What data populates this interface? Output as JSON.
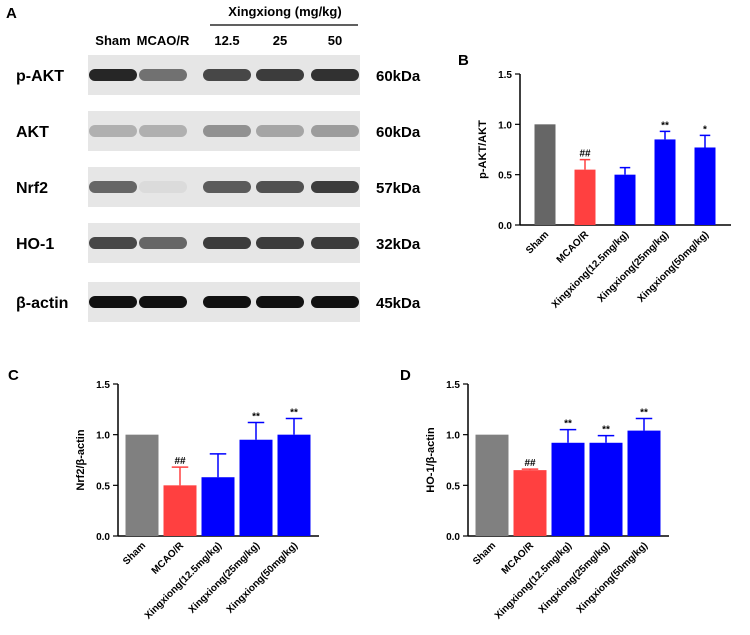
{
  "blot": {
    "panel_label": "A",
    "header": "Xingxiong (mg/kg)",
    "lanes": [
      "Sham",
      "MCAO/R",
      "12.5",
      "25",
      "50"
    ],
    "proteins": [
      "p-AKT",
      "AKT",
      "Nrf2",
      "HO-1",
      "β-actin"
    ],
    "sizes": [
      "60kDa",
      "60kDa",
      "57kDa",
      "32kDa",
      "45kDa"
    ]
  },
  "chart_data": [
    {
      "type": "bar",
      "panel_label": "B",
      "ylabel": "p-AKT/AKT",
      "categories": [
        "Sham",
        "MCAO/R",
        "Xingxiong(12.5mg/kg)",
        "Xingxiong(25mg/kg)",
        "Xingxiong(50mg/kg)"
      ],
      "values": [
        1.0,
        0.55,
        0.5,
        0.85,
        0.77
      ],
      "errors": [
        0,
        0.1,
        0.07,
        0.08,
        0.12
      ],
      "annotations": [
        null,
        "##",
        null,
        "**",
        "*"
      ],
      "colors": [
        "#666666",
        "#ff4040",
        "#0000ff",
        "#0000ff",
        "#0000ff"
      ],
      "ylim": [
        0,
        1.5
      ],
      "yticks": [
        {
          "value": 0,
          "label": "0.0"
        },
        {
          "value": 0.5,
          "label": "0.5"
        },
        {
          "value": 1,
          "label": "1.0"
        },
        {
          "value": 1.5,
          "label": "1.5"
        }
      ]
    },
    {
      "type": "bar",
      "panel_label": "C",
      "ylabel": "Nrf2/β-actin",
      "categories": [
        "Sham",
        "MCAO/R",
        "Xingxiong(12.5mg/kg)",
        "Xingxiong(25mg/kg)",
        "Xingxiong(50mg/kg)"
      ],
      "values": [
        1.0,
        0.5,
        0.58,
        0.95,
        1.0
      ],
      "errors": [
        0,
        0.18,
        0.23,
        0.17,
        0.16
      ],
      "annotations": [
        null,
        "##",
        null,
        "**",
        "**"
      ],
      "colors": [
        "#808080",
        "#ff4040",
        "#0000ff",
        "#0000ff",
        "#0000ff"
      ],
      "ylim": [
        0,
        1.5
      ],
      "yticks": [
        {
          "value": 0,
          "label": "0.0"
        },
        {
          "value": 0.5,
          "label": "0.5"
        },
        {
          "value": 1,
          "label": "1.0"
        },
        {
          "value": 1.5,
          "label": "1.5"
        }
      ]
    },
    {
      "type": "bar",
      "panel_label": "D",
      "ylabel": "HO-1/β-actin",
      "categories": [
        "Sham",
        "MCAO/R",
        "Xingxiong(12.5mg/kg)",
        "Xingxiong(25mg/kg)",
        "Xingxiong(50mg/kg)"
      ],
      "values": [
        1.0,
        0.65,
        0.92,
        0.92,
        1.04
      ],
      "errors": [
        0,
        0.01,
        0.13,
        0.07,
        0.12
      ],
      "annotations": [
        null,
        "##",
        "**",
        "**",
        "**"
      ],
      "colors": [
        "#808080",
        "#ff4040",
        "#0000ff",
        "#0000ff",
        "#0000ff"
      ],
      "ylim": [
        0,
        1.5
      ],
      "yticks": [
        {
          "value": 0,
          "label": "0.0"
        },
        {
          "value": 0.5,
          "label": "0.5"
        },
        {
          "value": 1,
          "label": "1.0"
        },
        {
          "value": 1.5,
          "label": "1.5"
        }
      ]
    }
  ]
}
